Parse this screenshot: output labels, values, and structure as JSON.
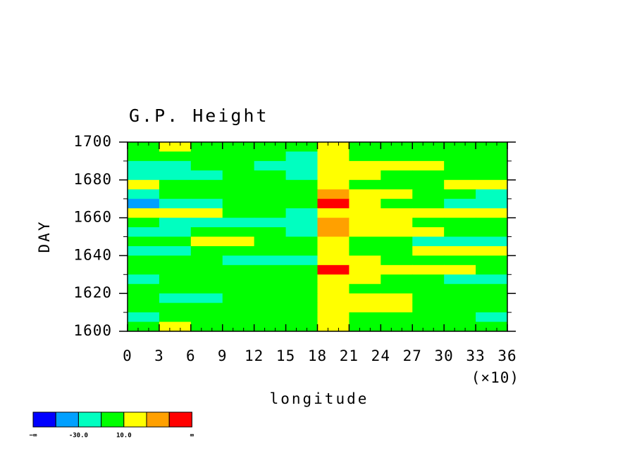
{
  "chart_data": {
    "type": "contour",
    "title": "G.P. Height",
    "xlabel": "longitude",
    "ylabel": "DAY",
    "x_multiplier": "(×10)",
    "x": [
      15,
      45,
      75,
      105,
      135,
      165,
      195,
      225,
      255,
      285,
      315,
      345
    ],
    "y": [
      1697.5,
      1692.5,
      1687.5,
      1682.5,
      1677.5,
      1672.5,
      1667.5,
      1662.5,
      1657.5,
      1652.5,
      1647.5,
      1642.5,
      1637.5,
      1632.5,
      1627.5,
      1622.5,
      1617.5,
      1612.5,
      1607.5,
      1602.5
    ],
    "z": [
      [
        0,
        20,
        0,
        0,
        0,
        0,
        20,
        0,
        0,
        0,
        0,
        0
      ],
      [
        0,
        0,
        0,
        0,
        0,
        -20,
        20,
        0,
        0,
        0,
        0,
        0
      ],
      [
        -20,
        -20,
        0,
        0,
        -20,
        -20,
        20,
        20,
        20,
        20,
        0,
        0
      ],
      [
        -20,
        -20,
        -20,
        0,
        0,
        -20,
        20,
        20,
        0,
        0,
        0,
        0
      ],
      [
        20,
        0,
        0,
        0,
        0,
        0,
        20,
        0,
        0,
        0,
        20,
        20
      ],
      [
        -20,
        0,
        0,
        0,
        0,
        0,
        40,
        20,
        20,
        0,
        0,
        -20
      ],
      [
        -40,
        -20,
        -20,
        0,
        0,
        0,
        60,
        20,
        0,
        0,
        -20,
        -20
      ],
      [
        20,
        20,
        20,
        0,
        0,
        -20,
        20,
        20,
        20,
        20,
        20,
        20
      ],
      [
        0,
        -20,
        -20,
        -20,
        -20,
        -20,
        40,
        20,
        20,
        0,
        0,
        0
      ],
      [
        -20,
        -20,
        0,
        0,
        0,
        -20,
        40,
        20,
        20,
        20,
        0,
        0
      ],
      [
        0,
        0,
        20,
        20,
        0,
        0,
        20,
        0,
        0,
        -20,
        -20,
        -20
      ],
      [
        -20,
        -20,
        0,
        0,
        0,
        0,
        20,
        0,
        0,
        20,
        20,
        20
      ],
      [
        0,
        0,
        0,
        -20,
        -20,
        -20,
        20,
        20,
        0,
        0,
        0,
        0
      ],
      [
        0,
        0,
        0,
        0,
        0,
        0,
        60,
        20,
        20,
        20,
        20,
        0
      ],
      [
        -20,
        0,
        0,
        0,
        0,
        0,
        20,
        20,
        0,
        0,
        -20,
        -20
      ],
      [
        0,
        0,
        0,
        0,
        0,
        0,
        20,
        0,
        0,
        0,
        0,
        0
      ],
      [
        0,
        -20,
        -20,
        0,
        0,
        0,
        20,
        20,
        20,
        0,
        0,
        0
      ],
      [
        0,
        0,
        0,
        0,
        0,
        0,
        20,
        20,
        20,
        0,
        0,
        0
      ],
      [
        -20,
        0,
        0,
        0,
        0,
        0,
        20,
        0,
        0,
        0,
        0,
        -20
      ],
      [
        0,
        20,
        0,
        0,
        0,
        0,
        20,
        0,
        0,
        0,
        0,
        0
      ]
    ],
    "levels": [
      -50,
      -30,
      -10,
      10,
      30,
      50
    ],
    "colors": [
      "#0000ff",
      "#00a0ff",
      "#00ffc0",
      "#00ff00",
      "#ffff00",
      "#ffa000",
      "#ff0000"
    ],
    "colorbar_ticks": [
      {
        "value": -30,
        "label": "-30.0"
      },
      {
        "value": 10,
        "label": "10.0"
      }
    ],
    "colorbar_ends": [
      "−∞",
      "∞"
    ],
    "xlim": [
      0,
      360
    ],
    "ylim": [
      1600,
      1700
    ],
    "xticks": [
      0,
      {
        "value": 30,
        "label": "3"
      },
      {
        "value": 60,
        "label": "6"
      },
      {
        "value": 90,
        "label": "9"
      },
      {
        "value": 120,
        "label": "12"
      },
      {
        "value": 150,
        "label": "15"
      },
      {
        "value": 180,
        "label": "18"
      },
      {
        "value": 210,
        "label": "21"
      },
      {
        "value": 240,
        "label": "24"
      },
      {
        "value": 270,
        "label": "27"
      },
      {
        "value": 300,
        "label": "30"
      },
      {
        "value": 330,
        "label": "33"
      },
      {
        "value": 360,
        "label": "36"
      }
    ],
    "yticks": [
      1600,
      1620,
      1640,
      1660,
      1680,
      1700
    ],
    "xminorticks": [
      10,
      20,
      40,
      50,
      70,
      80,
      100,
      110,
      130,
      140,
      160,
      170,
      190,
      200,
      220,
      230,
      250,
      260,
      280,
      290,
      310,
      320,
      340,
      350
    ],
    "yminorticks": [
      1610,
      1630,
      1650,
      1670,
      1690
    ]
  }
}
